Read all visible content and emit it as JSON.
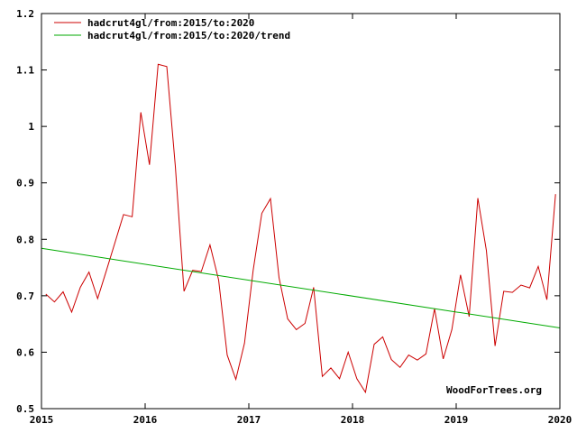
{
  "chart_data": {
    "type": "line",
    "title": "",
    "xlabel": "",
    "ylabel": "",
    "xlim": [
      2015,
      2020
    ],
    "ylim": [
      0.5,
      1.2
    ],
    "x_ticks": [
      "2015",
      "2016",
      "2017",
      "2018",
      "2019",
      "2020"
    ],
    "y_ticks": [
      "0.5",
      "0.6",
      "0.7",
      "0.8",
      "0.9",
      "1",
      "1.1",
      "1.2"
    ],
    "grid": false,
    "legend_position": "top-left",
    "series": [
      {
        "name": "hadcrut4gl/from:2015/to:2020",
        "color": "#cc0000",
        "x": [
          2015.0417,
          2015.125,
          2015.2083,
          2015.2917,
          2015.375,
          2015.4583,
          2015.5417,
          2015.625,
          2015.7083,
          2015.7917,
          2015.875,
          2015.9583,
          2016.0417,
          2016.125,
          2016.2083,
          2016.2917,
          2016.375,
          2016.4583,
          2016.5417,
          2016.625,
          2016.7083,
          2016.7917,
          2016.875,
          2016.9583,
          2017.0417,
          2017.125,
          2017.2083,
          2017.2917,
          2017.375,
          2017.4583,
          2017.5417,
          2017.625,
          2017.7083,
          2017.7917,
          2017.875,
          2017.9583,
          2018.0417,
          2018.125,
          2018.2083,
          2018.2917,
          2018.375,
          2018.4583,
          2018.5417,
          2018.625,
          2018.7083,
          2018.7917,
          2018.875,
          2018.9583,
          2019.0417,
          2019.125,
          2019.2083,
          2019.2917,
          2019.375,
          2019.4583,
          2019.5417,
          2019.625,
          2019.7083,
          2019.7917,
          2019.875,
          2019.9583
        ],
        "values": [
          0.703,
          0.689,
          0.707,
          0.671,
          0.715,
          0.742,
          0.695,
          0.744,
          0.794,
          0.844,
          0.84,
          1.025,
          0.932,
          1.11,
          1.106,
          0.929,
          0.708,
          0.745,
          0.743,
          0.79,
          0.728,
          0.595,
          0.552,
          0.616,
          0.745,
          0.846,
          0.872,
          0.732,
          0.659,
          0.64,
          0.651,
          0.715,
          0.557,
          0.572,
          0.553,
          0.6,
          0.553,
          0.529,
          0.614,
          0.627,
          0.587,
          0.573,
          0.595,
          0.586,
          0.597,
          0.677,
          0.588,
          0.64,
          0.737,
          0.663,
          0.873,
          0.78,
          0.611,
          0.708,
          0.706,
          0.719,
          0.714,
          0.752,
          0.693,
          0.88
        ]
      },
      {
        "name": "hadcrut4gl/from:2015/to:2020/trend",
        "color": "#00aa00",
        "x": [
          2015.0,
          2020.0
        ],
        "values": [
          0.784,
          0.643
        ]
      }
    ],
    "annotation": "WoodForTrees.org"
  }
}
